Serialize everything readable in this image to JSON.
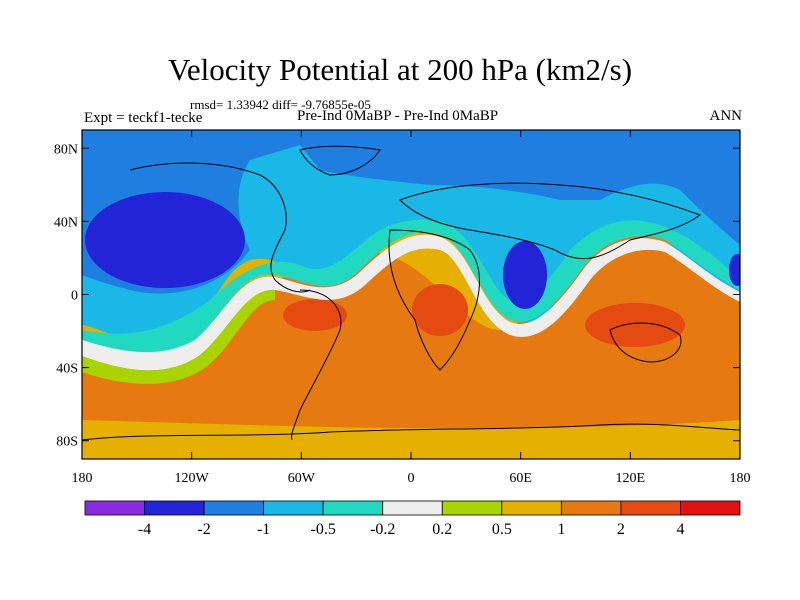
{
  "title": "Velocity Potential at 200 hPa (km2/s)",
  "stats": "rmsd= 1.33942 diff= -9.76855e-05",
  "left_label": "Expt = teckf1-tecke",
  "center_label": "Pre-Ind 0MaBP - Pre-Ind 0MaBP",
  "right_label": "ANN",
  "lon_ticks": [
    "180",
    "120W",
    "60W",
    "0",
    "60E",
    "120E",
    "180"
  ],
  "lat_ticks": [
    "80N",
    "40N",
    "0",
    "40S",
    "80S"
  ],
  "colorbar": {
    "colors": [
      "#8a2be2",
      "#2323d8",
      "#1e7fe0",
      "#1ab8e6",
      "#21d9c0",
      "#eeeeee",
      "#a8d400",
      "#e6b000",
      "#e67a10",
      "#e54a10",
      "#e21212"
    ],
    "labels": [
      "-4",
      "-2",
      "-1",
      "-0.5",
      "-0.2",
      "0.2",
      "0.5",
      "1",
      "2",
      "4"
    ]
  }
}
